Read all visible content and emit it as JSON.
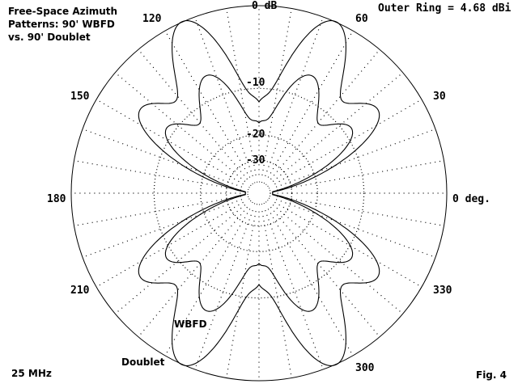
{
  "header": {
    "title_lines": [
      "Free-Space Azimuth",
      "Patterns:  90' WBFD",
      "vs. 90' Doublet"
    ],
    "outer_ring": "Outer Ring = 4.68 dBi",
    "frequency": "25 MHz",
    "figure": "Fig. 4"
  },
  "chart_data": {
    "type": "polar",
    "title": "Free-Space Azimuth Patterns: 90' WBFD vs. 90' Doublet",
    "outer_ring_dbi": 4.68,
    "frequency_mhz": 25,
    "rings_db": [
      {
        "value": 0,
        "label": "0 dB"
      },
      {
        "value": -10,
        "label": "-10"
      },
      {
        "value": -20,
        "label": "-20"
      },
      {
        "value": -30,
        "label": "-30"
      }
    ],
    "angle_labels": [
      {
        "deg": 0,
        "label": "0 deg."
      },
      {
        "deg": 30,
        "label": "30"
      },
      {
        "deg": 60,
        "label": "60"
      },
      {
        "deg": 120,
        "label": "120"
      },
      {
        "deg": 150,
        "label": "150"
      },
      {
        "deg": 180,
        "label": "180"
      },
      {
        "deg": 210,
        "label": "210"
      },
      {
        "deg": 240,
        "label": "Doublet"
      },
      {
        "deg": 300,
        "label": "300"
      },
      {
        "deg": 330,
        "label": "330"
      }
    ],
    "grid": true,
    "series": [
      {
        "name": "Doublet",
        "lobes": [
          {
            "center_deg": 90,
            "width_deg": 8,
            "peak_db": -14.5
          },
          {
            "center_deg": 66,
            "width_deg": 14,
            "peak_db": 0
          },
          {
            "center_deg": 35,
            "width_deg": 14,
            "peak_db": -4.5
          }
        ]
      },
      {
        "name": "WBFD",
        "lobes": [
          {
            "center_deg": 90,
            "width_deg": 8,
            "peak_db": -18.5
          },
          {
            "center_deg": 66,
            "width_deg": 14,
            "peak_db": -6.5
          },
          {
            "center_deg": 35,
            "width_deg": 14,
            "peak_db": -8.8
          }
        ]
      }
    ],
    "curve_labels": [
      "WBFD",
      "Doublet"
    ]
  }
}
